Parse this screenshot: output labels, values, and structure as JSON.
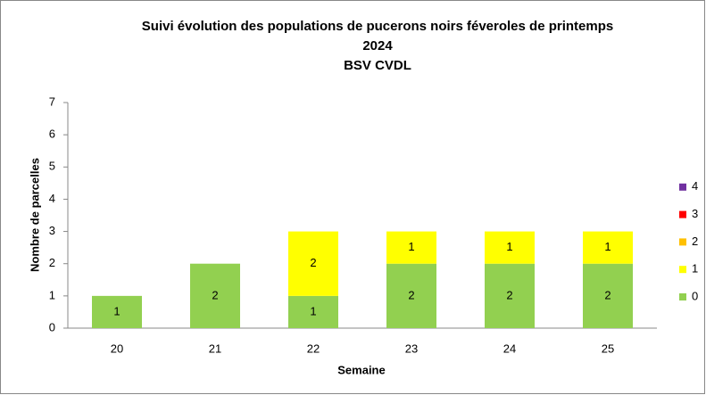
{
  "chart_data": {
    "type": "stacked_bar",
    "title_lines": [
      "Suivi évolution des populations de pucerons noirs féveroles de printemps",
      "2024",
      "BSV CVDL"
    ],
    "x_label": "Semaine",
    "y_label": "Nombre de parcelles",
    "categories": [
      "20",
      "21",
      "22",
      "23",
      "24",
      "25"
    ],
    "series": [
      {
        "name": "0",
        "color": "#92d050",
        "values": [
          1,
          2,
          1,
          2,
          2,
          2
        ]
      },
      {
        "name": "1",
        "color": "#ffff00",
        "values": [
          0,
          0,
          2,
          1,
          1,
          1
        ]
      },
      {
        "name": "2",
        "color": "#ffc000",
        "values": [
          0,
          0,
          0,
          0,
          0,
          0
        ]
      },
      {
        "name": "3",
        "color": "#ff0000",
        "values": [
          0,
          0,
          0,
          0,
          0,
          0
        ]
      },
      {
        "name": "4",
        "color": "#7030a0",
        "values": [
          0,
          0,
          0,
          0,
          0,
          0
        ]
      }
    ],
    "ylim": [
      0,
      7
    ],
    "yticks": [
      0,
      1,
      2,
      3,
      4,
      5,
      6,
      7
    ],
    "grid": false,
    "legend": "right"
  }
}
